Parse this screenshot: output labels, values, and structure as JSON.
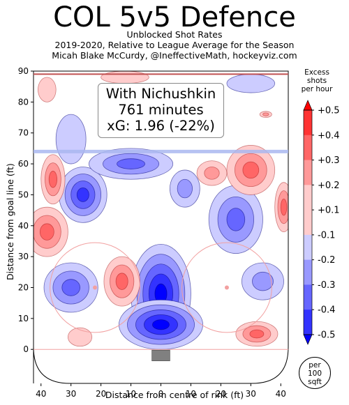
{
  "title": "COL 5v5 Defence",
  "subtitle_lines": [
    "Unblocked Shot Rates",
    "2019-2020, Relative to League Average for the Season",
    "Micah Blake McCurdy, @IneffectiveMath, hockeyviz.com"
  ],
  "info_box": {
    "player": "With Nichushkin",
    "minutes": "761 minutes",
    "xg": "xG: 1.96 (-22%)"
  },
  "badge": {
    "line1": "per",
    "line2": "100",
    "line3": "sqft"
  },
  "colors": {
    "negative": "#0000ff",
    "positive": "#ff0000",
    "neutral": "#ffffff",
    "rink_line": "#f2a0a0",
    "blue_line": "#aab8f0",
    "net": "#808080"
  },
  "chart_data": {
    "type": "heatmap",
    "title": "COL 5v5 Defence",
    "xlabel": "Distance from centre of rink (ft)",
    "ylabel": "Distance from goal line (ft)",
    "xlim": [
      -42.5,
      42.5
    ],
    "ylim": [
      -11,
      90
    ],
    "x_ticks": [
      -40,
      -30,
      -20,
      -10,
      0,
      10,
      20,
      30,
      40
    ],
    "x_tick_labels": [
      "40",
      "30",
      "20",
      "10",
      "0",
      "10",
      "20",
      "30",
      "40"
    ],
    "y_ticks": [
      0,
      10,
      20,
      30,
      40,
      50,
      60,
      70,
      80,
      90
    ],
    "colorbar": {
      "title": "Excess shots per hour",
      "title_lines": [
        "Excess",
        "shots",
        "per hour"
      ],
      "levels": [
        -0.5,
        -0.4,
        -0.3,
        -0.2,
        -0.1,
        0.1,
        0.2,
        0.3,
        0.4,
        0.5
      ],
      "tick_labels": [
        "-0.5",
        "-0.4",
        "-0.3",
        "-0.2",
        "-0.1",
        "+0.1",
        "+0.2",
        "+0.3",
        "+0.4",
        "+0.5"
      ]
    },
    "hotspots": [
      {
        "x": 0,
        "y": 18,
        "rx": 10,
        "ry": 16,
        "value": -0.5
      },
      {
        "x": 0,
        "y": 8,
        "rx": 14,
        "ry": 8,
        "value": -0.45
      },
      {
        "x": -26,
        "y": 50,
        "rx": 8,
        "ry": 9,
        "value": -0.4
      },
      {
        "x": -30,
        "y": 20,
        "rx": 9,
        "ry": 8,
        "value": -0.35
      },
      {
        "x": 25,
        "y": 42,
        "rx": 9,
        "ry": 11,
        "value": -0.35
      },
      {
        "x": -10,
        "y": 60,
        "rx": 14,
        "ry": 5,
        "value": -0.25
      },
      {
        "x": 8,
        "y": 52,
        "rx": 5,
        "ry": 6,
        "value": -0.2
      },
      {
        "x": 34,
        "y": 22,
        "rx": 7,
        "ry": 6,
        "value": -0.2
      },
      {
        "x": -30,
        "y": 68,
        "rx": 5,
        "ry": 8,
        "value": -0.15
      },
      {
        "x": 30,
        "y": 86,
        "rx": 8,
        "ry": 3,
        "value": -0.15
      },
      {
        "x": -36,
        "y": 55,
        "rx": 4,
        "ry": 8,
        "value": 0.25
      },
      {
        "x": -38,
        "y": 38,
        "rx": 7,
        "ry": 8,
        "value": 0.25
      },
      {
        "x": -13,
        "y": 22,
        "rx": 6,
        "ry": 8,
        "value": 0.3
      },
      {
        "x": 30,
        "y": 58,
        "rx": 8,
        "ry": 8,
        "value": 0.3
      },
      {
        "x": 17,
        "y": 57,
        "rx": 5,
        "ry": 4,
        "value": 0.2
      },
      {
        "x": 32,
        "y": 5,
        "rx": 7,
        "ry": 4,
        "value": 0.3
      },
      {
        "x": -38,
        "y": 84,
        "rx": 3,
        "ry": 4,
        "value": 0.15
      },
      {
        "x": 41,
        "y": 46,
        "rx": 3,
        "ry": 8,
        "value": 0.25
      },
      {
        "x": -27,
        "y": 4,
        "rx": 4,
        "ry": 3,
        "value": 0.15
      },
      {
        "x": 35,
        "y": 76,
        "rx": 2,
        "ry": 1,
        "value": 0.2
      },
      {
        "x": -12,
        "y": 88,
        "rx": 8,
        "ry": 2,
        "value": 0.1
      }
    ]
  }
}
